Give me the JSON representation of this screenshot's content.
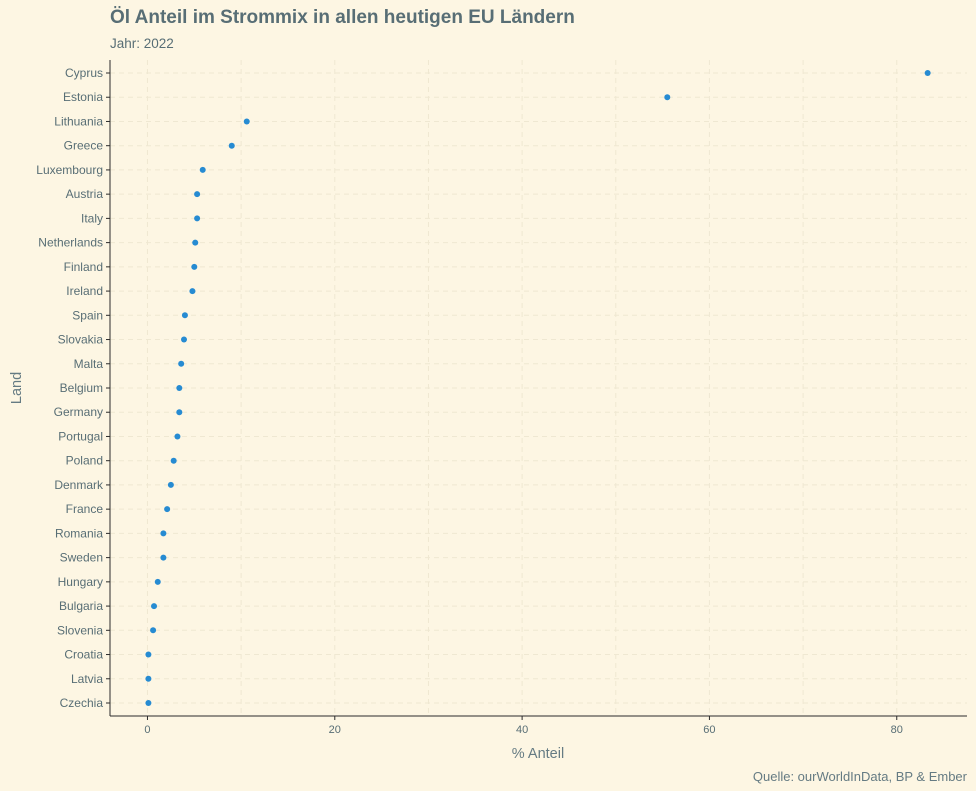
{
  "chart_data": {
    "type": "scatter",
    "title": "Öl Anteil im Strommix in allen heutigen EU Ländern",
    "subtitle": "Jahr: 2022",
    "xlabel": "% Anteil",
    "ylabel": "Land",
    "caption": "Quelle: ourWorldInData, BP & Ember",
    "xlim": [
      -4,
      87.5
    ],
    "xticks": [
      0,
      20,
      40,
      60,
      80
    ],
    "grid": true,
    "point_color": "#268bd2",
    "categories": [
      "Cyprus",
      "Estonia",
      "Lithuania",
      "Greece",
      "Luxembourg",
      "Austria",
      "Italy",
      "Netherlands",
      "Finland",
      "Ireland",
      "Spain",
      "Slovakia",
      "Malta",
      "Belgium",
      "Germany",
      "Portugal",
      "Poland",
      "Denmark",
      "France",
      "Romania",
      "Sweden",
      "Hungary",
      "Bulgaria",
      "Slovenia",
      "Croatia",
      "Latvia",
      "Czechia"
    ],
    "values": [
      83.3,
      55.5,
      10.6,
      9.0,
      5.9,
      5.3,
      5.3,
      5.1,
      5.0,
      4.8,
      4.0,
      3.9,
      3.6,
      3.4,
      3.4,
      3.2,
      2.8,
      2.5,
      2.1,
      1.7,
      1.7,
      1.1,
      0.7,
      0.6,
      0.1,
      0.1,
      0.1
    ]
  }
}
